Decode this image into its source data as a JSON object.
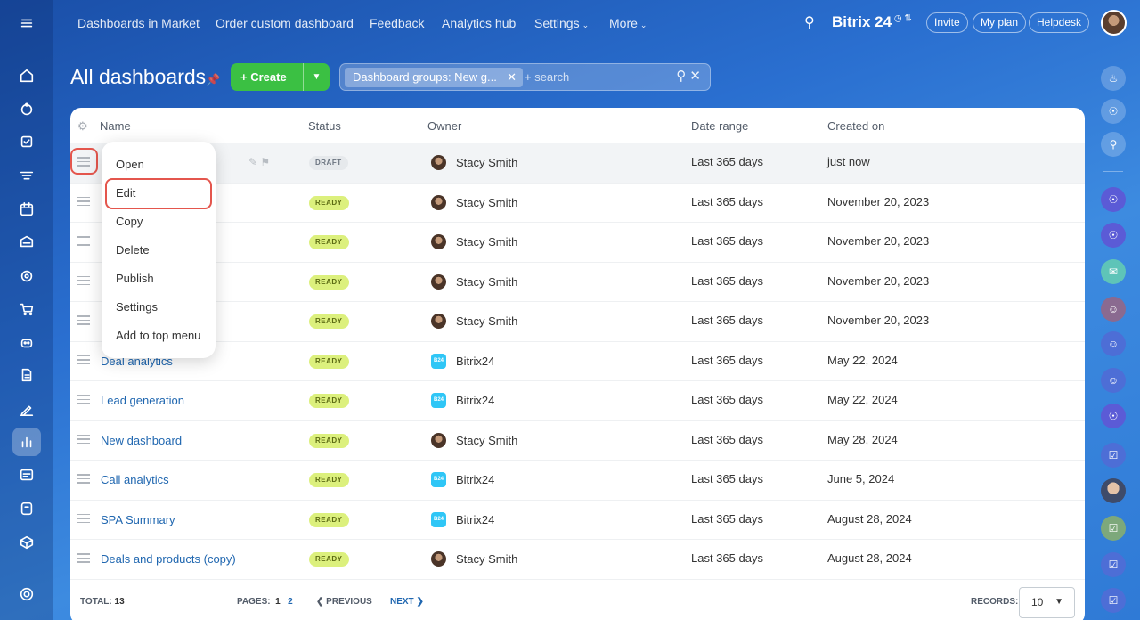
{
  "topnav": {
    "items": [
      "Dashboards in Market",
      "Order custom dashboard",
      "Feedback",
      "Analytics hub",
      "Settings",
      "More"
    ],
    "brand": "Bitrix 24",
    "invite": "Invite",
    "my_plan": "My plan",
    "helpdesk": "Helpdesk"
  },
  "page": {
    "title": "All dashboards",
    "create_label": "Create",
    "filter_tag": "Dashboard groups: New g...",
    "search_placeholder": "+ search"
  },
  "table": {
    "headers": {
      "name": "Name",
      "status": "Status",
      "owner": "Owner",
      "date_range": "Date range",
      "created_on": "Created on"
    },
    "rows": [
      {
        "name": "",
        "status": "DRAFT",
        "owner": "Stacy Smith",
        "owner_type": "person",
        "range": "Last 365 days",
        "created": "just now"
      },
      {
        "name": "",
        "status": "READY",
        "owner": "Stacy Smith",
        "owner_type": "person",
        "range": "Last 365 days",
        "created": "November 20, 2023"
      },
      {
        "name": "",
        "status": "READY",
        "owner": "Stacy Smith",
        "owner_type": "person",
        "range": "Last 365 days",
        "created": "November 20, 2023"
      },
      {
        "name": "",
        "status": "READY",
        "owner": "Stacy Smith",
        "owner_type": "person",
        "range": "Last 365 days",
        "created": "November 20, 2023"
      },
      {
        "name": "",
        "status": "READY",
        "owner": "Stacy Smith",
        "owner_type": "person",
        "range": "Last 365 days",
        "created": "November 20, 2023"
      },
      {
        "name": "Deal analytics",
        "status": "READY",
        "owner": "Bitrix24",
        "owner_type": "b24",
        "range": "Last 365 days",
        "created": "May 22, 2024"
      },
      {
        "name": "Lead generation",
        "status": "READY",
        "owner": "Bitrix24",
        "owner_type": "b24",
        "range": "Last 365 days",
        "created": "May 22, 2024"
      },
      {
        "name": "New dashboard",
        "status": "READY",
        "owner": "Stacy Smith",
        "owner_type": "person",
        "range": "Last 365 days",
        "created": "May 28, 2024"
      },
      {
        "name": "Call analytics",
        "status": "READY",
        "owner": "Bitrix24",
        "owner_type": "b24",
        "range": "Last 365 days",
        "created": "June 5, 2024"
      },
      {
        "name": "SPA Summary",
        "status": "READY",
        "owner": "Bitrix24",
        "owner_type": "b24",
        "range": "Last 365 days",
        "created": "August 28, 2024"
      },
      {
        "name": "Deals and products (copy)",
        "status": "READY",
        "owner": "Stacy Smith",
        "owner_type": "person",
        "range": "Last 365 days",
        "created": "August 28, 2024"
      }
    ],
    "b24_badge": "B24"
  },
  "footer": {
    "total_label": "TOTAL:",
    "total_value": "13",
    "pages_label": "PAGES:",
    "page_1": "1",
    "page_2": "2",
    "previous": "PREVIOUS",
    "next": "NEXT",
    "records_label": "RECORDS:",
    "records_value": "10"
  },
  "context_menu": {
    "items": [
      "Open",
      "Edit",
      "Copy",
      "Delete",
      "Publish",
      "Settings",
      "Add to top menu"
    ]
  },
  "colors": {
    "accent_green": "#3bc043",
    "link_blue": "#2067b0",
    "highlight_red": "#e4564d",
    "ready_badge": "#dcf07d"
  }
}
